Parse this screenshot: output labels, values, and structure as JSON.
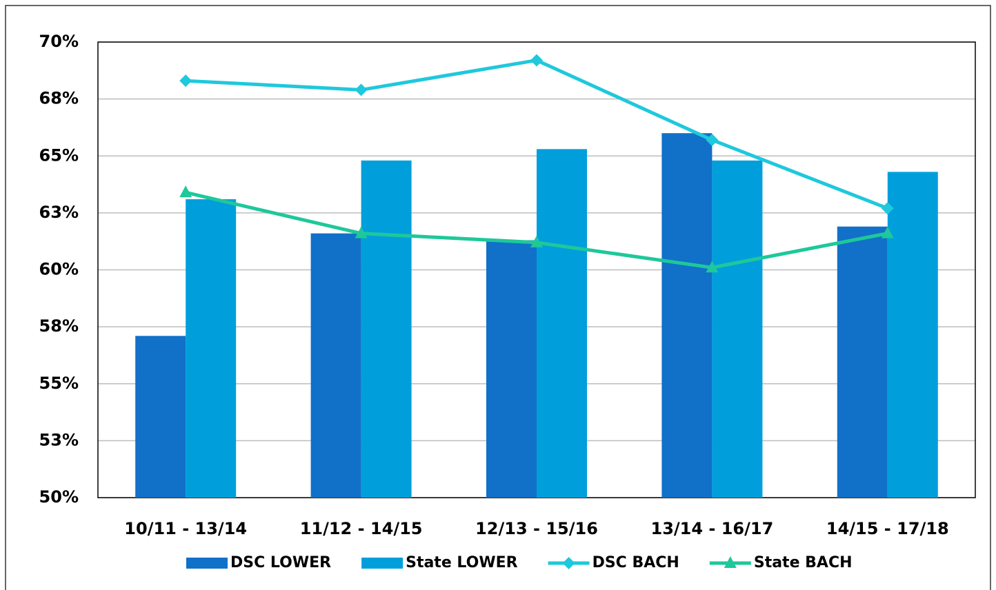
{
  "chart_data": {
    "type": "bar_line",
    "categories": [
      "10/11 - 13/14",
      "11/12 - 14/15",
      "12/13 - 15/16",
      "13/14 - 16/17",
      "14/15 - 17/18"
    ],
    "series": [
      {
        "name": "DSC LOWER",
        "type": "bar",
        "color": "#1170c8",
        "values": [
          57.1,
          61.6,
          61.3,
          66.0,
          61.9
        ]
      },
      {
        "name": "State LOWER",
        "type": "bar",
        "color": "#009fdb",
        "values": [
          63.1,
          64.8,
          65.3,
          64.8,
          64.3
        ]
      },
      {
        "name": "DSC BACH",
        "type": "line",
        "marker": "diamond",
        "color": "#1fc8dc",
        "values": [
          68.3,
          67.9,
          69.2,
          65.7,
          62.7
        ]
      },
      {
        "name": "State BACH",
        "type": "line",
        "marker": "triangle",
        "color": "#1ec89a",
        "values": [
          63.4,
          61.6,
          61.2,
          60.1,
          61.6
        ]
      }
    ],
    "ylim": [
      50,
      70
    ],
    "yticks": [
      {
        "value": 50,
        "label": "50%"
      },
      {
        "value": 52.5,
        "label": "53%"
      },
      {
        "value": 55,
        "label": "55%"
      },
      {
        "value": 57.5,
        "label": "58%"
      },
      {
        "value": 60,
        "label": "60%"
      },
      {
        "value": 62.5,
        "label": "63%"
      },
      {
        "value": 65,
        "label": "65%"
      },
      {
        "value": 67.5,
        "label": "68%"
      },
      {
        "value": 70,
        "label": "70%"
      }
    ],
    "grid": true,
    "legend": "bottom"
  }
}
